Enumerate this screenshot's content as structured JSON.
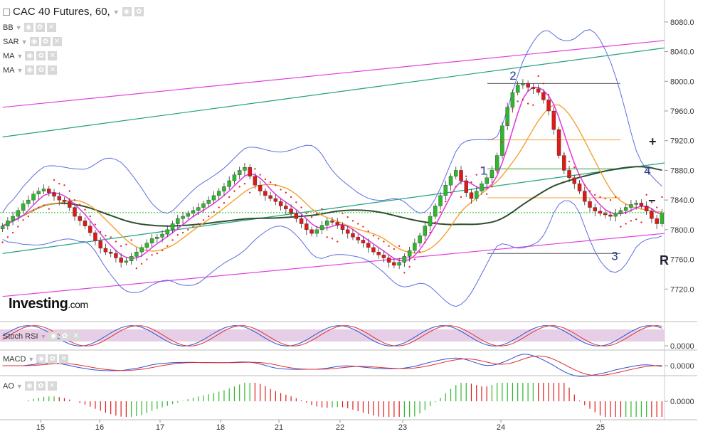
{
  "header": {
    "title": "CAC 40 Futures, 60,"
  },
  "indicators": [
    "BB",
    "SAR",
    "MA",
    "MA"
  ],
  "logo": {
    "brand": "Investing",
    "suffix": ".com"
  },
  "pane_labels": {
    "stoch": "Stoch RSI",
    "macd": "MACD",
    "ao": "AO"
  },
  "zoom": {
    "plus": "+",
    "minus": "−",
    "reset": "R"
  },
  "chart_data": {
    "type": "candlestick",
    "price_axis": {
      "ticks": [
        8080,
        8040,
        8000,
        7960,
        7920,
        7880,
        7840,
        7800,
        7760,
        7720
      ],
      "ylim": [
        7680,
        8100
      ]
    },
    "x_ticks": [
      "15",
      "16",
      "17",
      "18",
      "21",
      "22",
      "23",
      "24",
      "25"
    ],
    "sub_panes": [
      {
        "name": "Stoch RSI",
        "tick": "0.0000"
      },
      {
        "name": "MACD",
        "tick": "0.0000"
      },
      {
        "name": "AO",
        "tick": "0.0000"
      }
    ],
    "annotations": [
      {
        "label": "1",
        "price": 7880
      },
      {
        "label": "2",
        "price": 8008
      },
      {
        "label": "3",
        "price": 7765
      },
      {
        "label": "4",
        "price": 7880
      }
    ],
    "close": [
      7805,
      7812,
      7818,
      7826,
      7835,
      7840,
      7848,
      7852,
      7855,
      7850,
      7845,
      7840,
      7838,
      7830,
      7818,
      7812,
      7805,
      7796,
      7785,
      7775,
      7770,
      7768,
      7762,
      7756,
      7758,
      7764,
      7770,
      7776,
      7782,
      7788,
      7790,
      7794,
      7800,
      7808,
      7815,
      7818,
      7822,
      7826,
      7830,
      7835,
      7840,
      7846,
      7852,
      7858,
      7866,
      7874,
      7880,
      7884,
      7872,
      7860,
      7852,
      7846,
      7842,
      7838,
      7832,
      7828,
      7822,
      7815,
      7808,
      7800,
      7795,
      7800,
      7806,
      7812,
      7810,
      7806,
      7800,
      7795,
      7790,
      7786,
      7782,
      7776,
      7770,
      7766,
      7762,
      7756,
      7752,
      7756,
      7764,
      7772,
      7782,
      7792,
      7805,
      7818,
      7832,
      7846,
      7860,
      7872,
      7880,
      7866,
      7850,
      7842,
      7852,
      7862,
      7870,
      7880,
      7900,
      7940,
      7965,
      7985,
      7995,
      7997,
      7992,
      7990,
      7985,
      7975,
      7960,
      7935,
      7900,
      7880,
      7870,
      7862,
      7852,
      7838,
      7830,
      7825,
      7822,
      7820,
      7818,
      7822,
      7826,
      7830,
      7834,
      7836,
      7832,
      7825,
      7815,
      7808,
      7822
    ],
    "series": [
      {
        "name": "BB",
        "color": "#5b6ee1"
      },
      {
        "name": "SAR",
        "color": "#e03030"
      },
      {
        "name": "MA",
        "color": "#e040e0"
      },
      {
        "name": "MA",
        "color": "#f5a030"
      },
      {
        "name": "MA",
        "color": "#2f4f2f"
      }
    ],
    "trend_lines": [
      {
        "color": "#e040e0",
        "from": [
          0,
          7965
        ],
        "to": [
          128,
          8055
        ]
      },
      {
        "color": "#e040e0",
        "from": [
          0,
          7710
        ],
        "to": [
          128,
          7795
        ]
      },
      {
        "color": "#20a080",
        "from": [
          0,
          7925
        ],
        "to": [
          128,
          8045
        ]
      },
      {
        "color": "#20a080",
        "from": [
          0,
          7768
        ],
        "to": [
          128,
          7890
        ]
      }
    ],
    "fib_levels": [
      {
        "price": 7997,
        "color": "#555555"
      },
      {
        "price": 7921,
        "color": "#f5a030"
      },
      {
        "price": 7882,
        "color": "#20a020"
      },
      {
        "price": 7843,
        "color": "#f5a030"
      },
      {
        "price": 7768,
        "color": "#555555"
      }
    ],
    "reference_line": {
      "price": 7823,
      "color": "#20c020",
      "style": "dotted"
    }
  }
}
